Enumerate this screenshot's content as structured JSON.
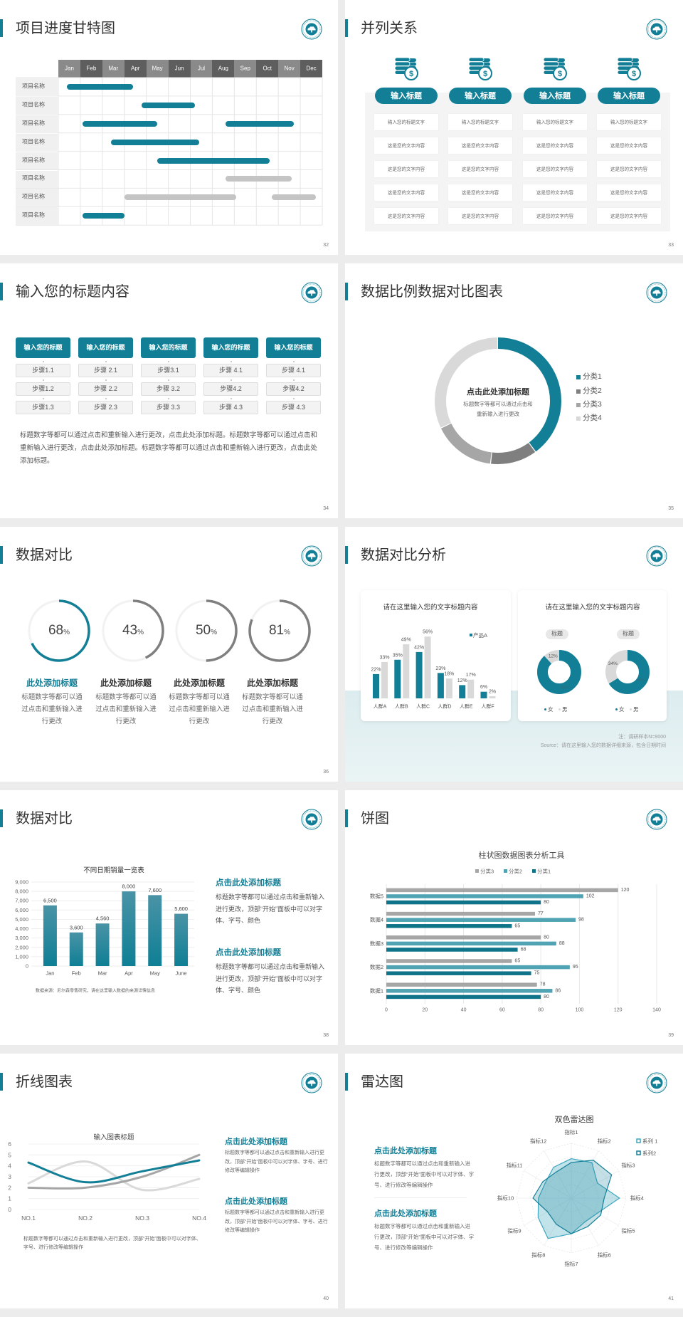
{
  "colors": {
    "teal": "#127f96",
    "teal_light": "#4fa3b3",
    "teal_dark": "#0f7489",
    "gray_dark": "#7f7f7f",
    "gray_mid": "#a6a6a6",
    "gray_light": "#d9d9d9"
  },
  "s32": {
    "title": "项目进度甘特图",
    "page": "32",
    "months": [
      "Jan",
      "Feb",
      "Mar",
      "Apr",
      "May",
      "Jun",
      "Jul",
      "Aug",
      "Sep",
      "Oct",
      "Nov",
      "Dec"
    ],
    "rows": [
      {
        "label": "项目名称",
        "bars": [
          {
            "start": 0.4,
            "end": 3.4,
            "color": "#127f96"
          }
        ]
      },
      {
        "label": "项目名称",
        "bars": [
          {
            "start": 3.8,
            "end": 6.2,
            "color": "#127f96"
          }
        ]
      },
      {
        "label": "项目名称",
        "bars": [
          {
            "start": 1.1,
            "end": 4.5,
            "color": "#127f96"
          },
          {
            "start": 7.6,
            "end": 10.7,
            "color": "#127f96"
          }
        ]
      },
      {
        "label": "项目名称",
        "bars": [
          {
            "start": 2.4,
            "end": 6.4,
            "color": "#127f96"
          }
        ]
      },
      {
        "label": "项目名称",
        "bars": [
          {
            "start": 4.5,
            "end": 9.6,
            "color": "#127f96"
          }
        ]
      },
      {
        "label": "项目名称",
        "bars": [
          {
            "start": 7.6,
            "end": 10.6,
            "color": "#c4c4c4"
          }
        ]
      },
      {
        "label": "项目名称",
        "bars": [
          {
            "start": 3.0,
            "end": 8.1,
            "color": "#c4c4c4"
          },
          {
            "start": 9.7,
            "end": 11.7,
            "color": "#c4c4c4"
          }
        ]
      },
      {
        "label": "项目名称",
        "bars": [
          {
            "start": 1.1,
            "end": 3.0,
            "color": "#127f96"
          }
        ]
      }
    ]
  },
  "s33": {
    "title": "并列关系",
    "page": "33",
    "icon": "coins-dollar-icon",
    "columns": [
      {
        "title": "输入标题",
        "items": [
          "输入您的标题文字",
          "这是您的文字内容",
          "这是您的文字内容",
          "这是您的文字内容",
          "这是您的文字内容"
        ]
      },
      {
        "title": "输入标题",
        "items": [
          "输入您的标题文字",
          "这是您的文字内容",
          "这是您的文字内容",
          "这是您的文字内容",
          "这是您的文字内容"
        ]
      },
      {
        "title": "输入标题",
        "items": [
          "输入您的标题文字",
          "这是您的文字内容",
          "这是您的文字内容",
          "这是您的文字内容",
          "这是您的文字内容"
        ]
      },
      {
        "title": "输入标题",
        "items": [
          "输入您的标题文字",
          "这是您的文字内容",
          "这是您的文字内容",
          "这是您的文字内容",
          "这是您的文字内容"
        ]
      }
    ]
  },
  "s34": {
    "title": "输入您的标题内容",
    "page": "34",
    "columns": [
      {
        "header": "输入您的标题",
        "steps": [
          "步骤1.1",
          "步骤1.2",
          "步骤1.3"
        ]
      },
      {
        "header": "输入您的标题",
        "steps": [
          "步骤 2.1",
          "步骤 2.2",
          "步骤 2.3"
        ]
      },
      {
        "header": "输入您的标题",
        "steps": [
          "步骤3.1",
          "步骤 3.2",
          "步骤 3.3"
        ]
      },
      {
        "header": "输入您的标题",
        "steps": [
          "步骤 4.1",
          "步骤4.2",
          "步骤 4.3"
        ]
      },
      {
        "header": "输入您的标题",
        "steps": [
          "步骤 4.1",
          "步骤4.2",
          "步骤 4.3"
        ]
      }
    ],
    "paragraph": "标题数字等都可以通过点击和重新输入进行更改，点击此处添加标题。标题数字等都可以通过点击和重新输入进行更改，点击此处添加标题。标题数字等都可以通过点击和重新输入进行更改，点击此处添加标题。"
  },
  "s35": {
    "title": "数据比例数据对比图表",
    "page": "35",
    "center_title": "点击此处添加标题",
    "center_lines": [
      "标题数字等都可以通过点击和",
      "重新输入进行更改"
    ]
  },
  "s36": {
    "title": "数据对比",
    "page": "36",
    "unit": "%",
    "items": [
      {
        "value": 68,
        "title": "此处添加标题",
        "text": "标题数字等都可以通过点击和重新输入进行更改"
      },
      {
        "value": 43,
        "title": "此处添加标题",
        "text": "标题数字等都可以通过点击和重新输入进行更改"
      },
      {
        "value": 50,
        "title": "此处添加标题",
        "text": "标题数字等都可以通过点击和重新输入进行更改"
      },
      {
        "value": 81,
        "title": "此处添加标题",
        "text": "标题数字等都可以通过点击和重新输入进行更改"
      }
    ]
  },
  "s37": {
    "title": "数据对比分析",
    "page": "37",
    "right_title": "请在这里输入您的文字标题内容",
    "note": "注：调研样本N=9000",
    "source": "Source：请在这里输入您的数据详细来源，包含日期时间"
  },
  "s38": {
    "title": "数据对比",
    "page": "38",
    "source": "数据来源：尼尔森零售研究，请在这里输入数据的来源详情信息",
    "blocks": [
      {
        "title": "点击此处添加标题",
        "text": "标题数字等都可以通过点击和重新输入进行更改，顶部“开始”面板中可以对字体、字号、颜色"
      },
      {
        "title": "点击此处添加标题",
        "text": "标题数字等都可以通过点击和重新输入进行更改，顶部“开始”面板中可以对字体、字号、颜色"
      }
    ]
  },
  "s39": {
    "title": "饼图",
    "page": "39"
  },
  "s40": {
    "title": "折线图表",
    "page": "40",
    "paragraph": "标题数字等都可以通过点击和重新输入进行更改，顶部“开始”面板中可以对字体、字号、进行修改等编辑操作",
    "blocks": [
      {
        "title": "点击此处添加标题",
        "text": "标题数字等都可以通过点击和重新输入进行更改，顶部“开始”面板中可以对字体、字号、进行修改等编辑操作"
      },
      {
        "title": "点击此处添加标题",
        "text": "标题数字等都可以通过点击和重新输入进行更改，顶部“开始”面板中可以对字体、字号、进行修改等编辑操作"
      }
    ]
  },
  "s41": {
    "title": "雷达图",
    "page": "41",
    "blocks": [
      {
        "title": "点击此处添加标题",
        "text": "标题数字等都可以通过点击和重新输入进行更改，顶部“开始”面板中可以对字体、字号、进行修改等编辑操作"
      },
      {
        "title": "点击此处添加标题",
        "text": "标题数字等都可以通过点击和重新输入进行更改，顶部“开始”面板中可以对字体、字号、进行修改等编辑操作"
      }
    ]
  },
  "chart_data": [
    {
      "type": "pie",
      "donut": true,
      "categories": [
        "分类1",
        "分类2",
        "分类3",
        "分类4"
      ],
      "values": [
        40,
        12,
        16,
        32
      ],
      "colors": [
        "#127f96",
        "#7f7f7f",
        "#a6a6a6",
        "#d9d9d9"
      ],
      "legend": "right"
    },
    {
      "type": "bar",
      "title": "请在这里输入您的文字标题内容",
      "categories": [
        "人群A",
        "人群B",
        "人群C",
        "人群D",
        "人群E",
        "人群F"
      ],
      "series": [
        {
          "name": "产品A",
          "values": [
            22,
            35,
            42,
            23,
            12,
            6
          ],
          "labels": [
            "22%",
            "35%",
            "42%",
            "23%",
            "12%",
            "6%"
          ],
          "color": "#127f96"
        },
        {
          "values": [
            33,
            49,
            56,
            18,
            17,
            2
          ],
          "labels": [
            "33%",
            "49%",
            "56%",
            "18%",
            "17%",
            "2%"
          ],
          "color": "#d9d9d9"
        }
      ],
      "legend": "top-right"
    },
    {
      "type": "pie",
      "donut": true,
      "label": "标题",
      "categories": [
        "女",
        "男"
      ],
      "values": [
        88,
        12
      ],
      "labels": [
        "88%",
        "12%"
      ],
      "colors": [
        "#127f96",
        "#d9d9d9"
      ],
      "legend": "bottom"
    },
    {
      "type": "pie",
      "donut": true,
      "label": "标题",
      "categories": [
        "女",
        "男"
      ],
      "values": [
        66,
        34
      ],
      "labels": [
        "66%",
        "34%"
      ],
      "colors": [
        "#127f96",
        "#d9d9d9"
      ],
      "legend": "bottom"
    },
    {
      "type": "bar",
      "title": "不同日期销量一览表",
      "categories": [
        "Jan",
        "Feb",
        "Mar",
        "Apr",
        "May",
        "June"
      ],
      "values": [
        6500,
        3600,
        4560,
        8000,
        7600,
        5600
      ],
      "labels": [
        "6,500",
        "3,600",
        "4,560",
        "8,000",
        "7,600",
        "5,600"
      ],
      "yticks": [
        "0",
        "1,000",
        "2,000",
        "3,000",
        "4,000",
        "5,000",
        "6,000",
        "7,000",
        "8,000",
        "9,000"
      ],
      "ylim": [
        0,
        9000
      ],
      "grid": true
    },
    {
      "type": "bar",
      "orientation": "horizontal",
      "title": "柱状图数据图表分析工具",
      "categories": [
        "数据1",
        "数据2",
        "数据3",
        "数据4",
        "数据5"
      ],
      "series": [
        {
          "name": "分类1",
          "values": [
            80,
            75,
            68,
            65,
            80
          ],
          "color": "#0f7489"
        },
        {
          "name": "分类2",
          "values": [
            86,
            95,
            88,
            98,
            102
          ],
          "color": "#4fa3b3"
        },
        {
          "name": "分类3",
          "values": [
            78,
            65,
            80,
            77,
            120
          ],
          "color": "#a6a6a6"
        }
      ],
      "xticks": [
        "0",
        "20",
        "40",
        "60",
        "80",
        "100",
        "120",
        "140"
      ],
      "xlim": [
        0,
        140
      ],
      "legend": "top",
      "grid": true
    },
    {
      "type": "line",
      "title": "输入图表标题",
      "categories": [
        "NO.1",
        "NO.2",
        "NO.3",
        "NO.4"
      ],
      "series": [
        {
          "values": [
            4.3,
            2.5,
            3.5,
            4.5
          ],
          "color": "#127f96"
        },
        {
          "values": [
            2.4,
            4.4,
            1.8,
            2.8
          ],
          "color": "#d9d9d9"
        },
        {
          "values": [
            2.0,
            2.0,
            3.0,
            5.0
          ],
          "color": "#a6a6a6"
        }
      ],
      "yticks": [
        "0",
        "1",
        "2",
        "3",
        "4",
        "5",
        "6"
      ],
      "ylim": [
        0,
        6
      ],
      "smooth": true,
      "grid": true
    },
    {
      "type": "radar",
      "title": "双色雷达图",
      "axes": [
        "指标1",
        "指标2",
        "指标3",
        "指标4",
        "指标5",
        "指标6",
        "指标7",
        "指标8",
        "指标9",
        "指标10",
        "指标11",
        "指标12"
      ],
      "series": [
        {
          "name": "系列 1",
          "values": [
            72,
            75,
            55,
            88,
            55,
            50,
            65,
            85,
            70,
            60,
            55,
            65
          ],
          "color": "#3fa7bf"
        },
        {
          "name": "系列2",
          "values": [
            65,
            80,
            85,
            60,
            62,
            60,
            65,
            55,
            50,
            70,
            60,
            55
          ],
          "color": "#127f96"
        }
      ],
      "max": 100,
      "legend": "top-right"
    }
  ]
}
